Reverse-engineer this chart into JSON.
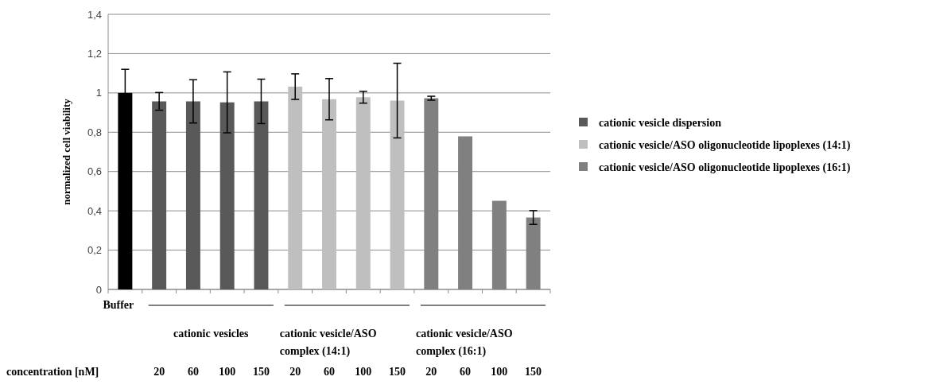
{
  "chart_data": {
    "type": "bar",
    "ylabel": "normalized cell viability",
    "xlabel": "concentration [nM]",
    "categories": [
      "Buffer",
      "20",
      "60",
      "100",
      "150",
      "20",
      "60",
      "100",
      "150",
      "20",
      "60",
      "100",
      "150"
    ],
    "series": [
      {
        "color": "#000000",
        "values": [
          1.0,
          null,
          null,
          null,
          null,
          null,
          null,
          null,
          null,
          null,
          null,
          null,
          null
        ],
        "errors": [
          0.12,
          null,
          null,
          null,
          null,
          null,
          null,
          null,
          null,
          null,
          null,
          null,
          null
        ]
      },
      {
        "name": "cationic vesicle dispersion",
        "color": "#595959",
        "values": [
          null,
          0.957,
          0.957,
          0.952,
          0.957,
          null,
          null,
          null,
          null,
          null,
          null,
          null,
          null
        ],
        "errors": [
          null,
          0.045,
          0.11,
          0.155,
          0.113,
          null,
          null,
          null,
          null,
          null,
          null,
          null,
          null
        ]
      },
      {
        "name": "cationic vesicle/ASO oligonucleotide lipoplexes (14:1)",
        "color": "#bfbfbf",
        "values": [
          null,
          null,
          null,
          null,
          null,
          1.032,
          0.968,
          0.978,
          0.961,
          null,
          null,
          null,
          null
        ],
        "errors": [
          null,
          null,
          null,
          null,
          null,
          0.065,
          0.105,
          0.03,
          0.19,
          null,
          null,
          null,
          null
        ]
      },
      {
        "name": "cationic vesicle/ASO oligonucleotide lipoplexes (16:1)",
        "color": "#808080",
        "values": [
          null,
          null,
          null,
          null,
          null,
          null,
          null,
          null,
          null,
          0.973,
          0.779,
          0.451,
          0.366
        ],
        "errors": [
          null,
          null,
          null,
          null,
          null,
          null,
          null,
          null,
          null,
          0.01,
          null,
          null,
          0.035
        ]
      }
    ],
    "annotations": [
      "cationic vesicles",
      "cationic vesicle/ASO complex (14:1)",
      "cationic vesicle/ASO complex (16:1)"
    ],
    "ylim": [
      0,
      1.4
    ],
    "yticks": [
      {
        "value": 0,
        "label": "0"
      },
      {
        "value": 0.2,
        "label": "0,2"
      },
      {
        "value": 0.4,
        "label": "0,4"
      },
      {
        "value": 0.6,
        "label": "0,6"
      },
      {
        "value": 0.8,
        "label": "0,8"
      },
      {
        "value": 1,
        "label": "1"
      },
      {
        "value": 1.2,
        "label": "1,2"
      },
      {
        "value": 1.4,
        "label": "1,4"
      }
    ],
    "grid": "y",
    "legend": "right"
  }
}
